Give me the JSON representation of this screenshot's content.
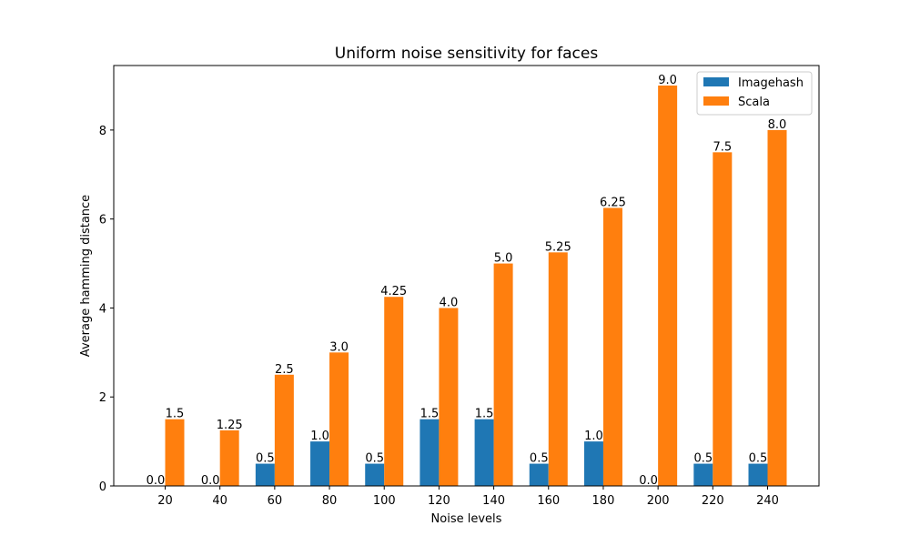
{
  "chart_data": {
    "type": "bar",
    "title": "Uniform noise sensitivity for faces",
    "xlabel": "Noise levels",
    "ylabel": "Average hamming distance",
    "categories": [
      "20",
      "40",
      "60",
      "80",
      "100",
      "120",
      "140",
      "160",
      "180",
      "200",
      "220",
      "240"
    ],
    "series": [
      {
        "name": "Imagehash",
        "color": "#1f77b4",
        "values": [
          0.0,
          0.0,
          0.5,
          1.0,
          0.5,
          1.5,
          1.5,
          0.5,
          1.0,
          0.0,
          0.5,
          0.5
        ],
        "labels": [
          "0.0",
          "0.0",
          "0.5",
          "1.0",
          "0.5",
          "1.5",
          "1.5",
          "0.5",
          "1.0",
          "0.0",
          "0.5",
          "0.5"
        ]
      },
      {
        "name": "Scala",
        "color": "#ff7f0e",
        "values": [
          1.5,
          1.25,
          2.5,
          3.0,
          4.25,
          4.0,
          5.0,
          5.25,
          6.25,
          9.0,
          7.5,
          8.0
        ],
        "labels": [
          "1.5",
          "1.25",
          "2.5",
          "3.0",
          "4.25",
          "4.0",
          "5.0",
          "5.25",
          "6.25",
          "9.0",
          "7.5",
          "8.0"
        ]
      }
    ],
    "ylim": [
      0,
      9.45
    ],
    "yticks": [
      "0",
      "2",
      "4",
      "6",
      "8"
    ],
    "legend": "top-right",
    "grid": false
  }
}
